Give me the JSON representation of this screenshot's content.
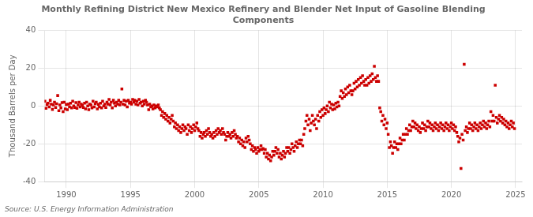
{
  "chart_data": {
    "type": "scatter",
    "title": "Monthly Refining District New Mexico Refinery and Blender Net Input of Gasoline Blending\nComponents",
    "ylabel": "Thousand Barrels per Day",
    "annotation": "Source: U.S. Energy Information Administration",
    "color": "#cc0000",
    "marker": "square",
    "grid": true,
    "legend": false,
    "xlim": [
      1988.3,
      2025.5
    ],
    "xticks": [
      1990,
      1995,
      2000,
      2005,
      2010,
      2015,
      2020,
      2025
    ],
    "ylim": [
      -40,
      40
    ],
    "yticks": [
      -40,
      -20,
      0,
      20,
      40
    ],
    "x": [
      1988.33,
      1988.42,
      1988.5,
      1988.58,
      1988.67,
      1988.75,
      1988.83,
      1988.92,
      1989.0,
      1989.08,
      1989.17,
      1989.25,
      1989.33,
      1989.42,
      1989.5,
      1989.58,
      1989.67,
      1989.75,
      1989.83,
      1989.92,
      1990.0,
      1990.08,
      1990.17,
      1990.25,
      1990.33,
      1990.42,
      1990.5,
      1990.58,
      1990.67,
      1990.75,
      1990.83,
      1990.92,
      1991.0,
      1991.08,
      1991.17,
      1991.25,
      1991.33,
      1991.42,
      1991.5,
      1991.58,
      1991.67,
      1991.75,
      1991.83,
      1991.92,
      1992.0,
      1992.08,
      1992.17,
      1992.25,
      1992.33,
      1992.42,
      1992.5,
      1992.58,
      1992.67,
      1992.75,
      1992.83,
      1992.92,
      1993.0,
      1993.08,
      1993.17,
      1993.25,
      1993.33,
      1993.42,
      1993.5,
      1993.58,
      1993.67,
      1993.75,
      1993.83,
      1993.92,
      1994.0,
      1994.08,
      1994.17,
      1994.25,
      1994.33,
      1994.42,
      1994.5,
      1994.58,
      1994.67,
      1994.75,
      1994.83,
      1994.92,
      1995.0,
      1995.08,
      1995.17,
      1995.25,
      1995.33,
      1995.42,
      1995.5,
      1995.58,
      1995.67,
      1995.75,
      1995.83,
      1995.92,
      1996.0,
      1996.08,
      1996.17,
      1996.25,
      1996.33,
      1996.42,
      1996.5,
      1996.58,
      1996.67,
      1996.75,
      1996.83,
      1996.92,
      1997.0,
      1997.08,
      1997.17,
      1997.25,
      1997.33,
      1997.42,
      1997.5,
      1997.58,
      1997.67,
      1997.75,
      1997.83,
      1997.92,
      1998.0,
      1998.08,
      1998.17,
      1998.25,
      1998.33,
      1998.42,
      1998.5,
      1998.58,
      1998.67,
      1998.75,
      1998.83,
      1998.92,
      1999.0,
      1999.08,
      1999.17,
      1999.25,
      1999.33,
      1999.42,
      1999.5,
      1999.58,
      1999.67,
      1999.75,
      1999.83,
      1999.92,
      2000.0,
      2000.08,
      2000.17,
      2000.25,
      2000.33,
      2000.42,
      2000.5,
      2000.58,
      2000.67,
      2000.75,
      2000.83,
      2000.92,
      2001.0,
      2001.08,
      2001.17,
      2001.25,
      2001.33,
      2001.42,
      2001.5,
      2001.58,
      2001.67,
      2001.75,
      2001.83,
      2001.92,
      2002.0,
      2002.08,
      2002.17,
      2002.25,
      2002.33,
      2002.42,
      2002.5,
      2002.58,
      2002.67,
      2002.75,
      2002.83,
      2002.92,
      2003.0,
      2003.08,
      2003.17,
      2003.25,
      2003.33,
      2003.42,
      2003.5,
      2003.58,
      2003.67,
      2003.75,
      2003.83,
      2003.92,
      2004.0,
      2004.08,
      2004.17,
      2004.25,
      2004.33,
      2004.42,
      2004.5,
      2004.58,
      2004.67,
      2004.75,
      2004.83,
      2004.92,
      2005.0,
      2005.08,
      2005.17,
      2005.25,
      2005.33,
      2005.42,
      2005.5,
      2005.58,
      2005.67,
      2005.75,
      2005.83,
      2005.92,
      2006.0,
      2006.08,
      2006.17,
      2006.25,
      2006.33,
      2006.42,
      2006.5,
      2006.58,
      2006.67,
      2006.75,
      2006.83,
      2006.92,
      2007.0,
      2007.08,
      2007.17,
      2007.25,
      2007.33,
      2007.42,
      2007.5,
      2007.58,
      2007.67,
      2007.75,
      2007.83,
      2007.92,
      2008.0,
      2008.08,
      2008.17,
      2008.25,
      2008.33,
      2008.42,
      2008.5,
      2008.58,
      2008.67,
      2008.75,
      2008.83,
      2008.92,
      2009.0,
      2009.08,
      2009.17,
      2009.25,
      2009.33,
      2009.42,
      2009.5,
      2009.58,
      2009.67,
      2009.75,
      2009.83,
      2009.92,
      2010.0,
      2010.08,
      2010.17,
      2010.25,
      2010.33,
      2010.42,
      2010.5,
      2010.58,
      2010.67,
      2010.75,
      2010.83,
      2010.92,
      2011.0,
      2011.08,
      2011.17,
      2011.25,
      2011.33,
      2011.42,
      2011.5,
      2011.58,
      2011.67,
      2011.75,
      2011.83,
      2011.92,
      2012.0,
      2012.08,
      2012.17,
      2012.25,
      2012.33,
      2012.42,
      2012.5,
      2012.58,
      2012.67,
      2012.75,
      2012.83,
      2012.92,
      2013.0,
      2013.08,
      2013.17,
      2013.25,
      2013.33,
      2013.42,
      2013.5,
      2013.58,
      2013.67,
      2013.75,
      2013.83,
      2013.92,
      2014.0,
      2014.08,
      2014.17,
      2014.25,
      2014.33,
      2014.42,
      2014.5,
      2014.58,
      2014.67,
      2014.75,
      2014.83,
      2014.92,
      2015.0,
      2015.08,
      2015.17,
      2015.25,
      2015.33,
      2015.42,
      2015.5,
      2015.58,
      2015.67,
      2015.75,
      2015.83,
      2015.92,
      2016.0,
      2016.08,
      2016.17,
      2016.25,
      2016.33,
      2016.42,
      2016.5,
      2016.58,
      2016.67,
      2016.75,
      2016.83,
      2016.92,
      2017.0,
      2017.08,
      2017.17,
      2017.25,
      2017.33,
      2017.42,
      2017.5,
      2017.58,
      2017.67,
      2017.75,
      2017.83,
      2017.92,
      2018.0,
      2018.08,
      2018.17,
      2018.25,
      2018.33,
      2018.42,
      2018.5,
      2018.58,
      2018.67,
      2018.75,
      2018.83,
      2018.92,
      2019.0,
      2019.08,
      2019.17,
      2019.25,
      2019.33,
      2019.42,
      2019.5,
      2019.58,
      2019.67,
      2019.75,
      2019.83,
      2019.92,
      2020.0,
      2020.08,
      2020.17,
      2020.25,
      2020.33,
      2020.42,
      2020.5,
      2020.58,
      2020.67,
      2020.75,
      2020.83,
      2020.92,
      2021.0,
      2021.08,
      2021.17,
      2021.25,
      2021.33,
      2021.42,
      2021.5,
      2021.58,
      2021.67,
      2021.75,
      2021.83,
      2021.92,
      2022.0,
      2022.08,
      2022.17,
      2022.25,
      2022.33,
      2022.42,
      2022.5,
      2022.58,
      2022.67,
      2022.75,
      2022.83,
      2022.92,
      2023.0,
      2023.08,
      2023.17,
      2023.25,
      2023.33,
      2023.42,
      2023.5,
      2023.58,
      2023.67,
      2023.75,
      2023.83,
      2023.92,
      2024.0,
      2024.08,
      2024.17,
      2024.25,
      2024.33,
      2024.42,
      2024.5,
      2024.58,
      2024.67,
      2024.75,
      2024.83,
      2024.92
    ],
    "values": [
      2.5,
      -1.2,
      0.8,
      1.5,
      -0.5,
      3.0,
      1.0,
      -1.8,
      0.5,
      2.0,
      -0.8,
      1.2,
      5.5,
      -2.5,
      0.5,
      -1.0,
      1.8,
      -3.0,
      2.0,
      -1.5,
      0.8,
      -2.0,
      1.0,
      -0.5,
      1.5,
      -1.0,
      2.5,
      0.0,
      -0.8,
      1.8,
      -1.2,
      0.5,
      2.0,
      -0.5,
      1.0,
      0.2,
      -0.8,
      1.5,
      -1.5,
      2.0,
      0.0,
      -2.0,
      1.0,
      0.5,
      -1.0,
      2.5,
      -0.5,
      1.2,
      2.0,
      -1.5,
      0.8,
      -0.5,
      1.5,
      -1.0,
      2.5,
      0.0,
      1.0,
      -0.8,
      2.0,
      1.0,
      3.5,
      0.5,
      2.0,
      -1.0,
      3.0,
      1.5,
      0.0,
      2.0,
      1.0,
      3.0,
      0.5,
      2.0,
      9.0,
      1.0,
      3.0,
      0.5,
      2.5,
      -0.5,
      3.0,
      1.5,
      2.0,
      1.0,
      3.5,
      2.0,
      3.0,
      1.0,
      2.5,
      0.5,
      3.5,
      1.5,
      2.0,
      0.0,
      2.5,
      1.0,
      3.0,
      2.0,
      0.5,
      -2.0,
      1.0,
      -0.5,
      0.0,
      -1.5,
      0.5,
      -1.0,
      0.0,
      -0.5,
      0.5,
      -1.0,
      -2.0,
      -5.0,
      -3.0,
      -6.0,
      -4.0,
      -7.0,
      -5.0,
      -8.0,
      -6.0,
      -9.0,
      -7.0,
      -5.0,
      -8.0,
      -11.0,
      -9.0,
      -12.0,
      -10.0,
      -13.0,
      -11.0,
      -14.0,
      -12.0,
      -10.0,
      -13.0,
      -11.0,
      -12.0,
      -15.0,
      -10.0,
      -13.0,
      -11.0,
      -14.0,
      -12.0,
      -10.0,
      -13.0,
      -11.0,
      -9.0,
      -12.0,
      -13.0,
      -16.0,
      -14.0,
      -17.0,
      -15.0,
      -14.0,
      -16.0,
      -13.0,
      -15.0,
      -12.0,
      -14.0,
      -16.0,
      -15.0,
      -17.0,
      -14.0,
      -16.0,
      -13.0,
      -15.0,
      -12.0,
      -14.0,
      -13.0,
      -15.0,
      -12.0,
      -14.0,
      -15.0,
      -18.0,
      -16.0,
      -14.0,
      -16.0,
      -15.0,
      -17.0,
      -14.0,
      -16.0,
      -13.0,
      -15.0,
      -17.0,
      -16.0,
      -19.0,
      -17.0,
      -20.0,
      -18.0,
      -21.0,
      -19.0,
      -22.0,
      -17.0,
      -19.0,
      -16.0,
      -18.0,
      -20.0,
      -23.0,
      -21.0,
      -24.0,
      -22.0,
      -23.0,
      -25.0,
      -22.0,
      -24.0,
      -23.0,
      -21.0,
      -23.0,
      -22.5,
      -25.0,
      -23.0,
      -27.0,
      -25.0,
      -28.0,
      -26.0,
      -29.0,
      -27.0,
      -24.0,
      -26.0,
      -24.0,
      -22.0,
      -25.0,
      -23.0,
      -27.0,
      -25.0,
      -28.0,
      -26.0,
      -24.0,
      -27.0,
      -25.0,
      -22.0,
      -24.0,
      -22.0,
      -25.0,
      -23.0,
      -20.0,
      -22.0,
      -24.0,
      -21.0,
      -19.0,
      -22.0,
      -20.0,
      -18.0,
      -20.0,
      -18.0,
      -21.0,
      -15.0,
      -12.0,
      -8.0,
      -5.0,
      -10.0,
      -7.0,
      -13.0,
      -9.0,
      -5.0,
      -8.0,
      -10.0,
      -7.0,
      -12.0,
      -5.0,
      -8.0,
      -3.0,
      -6.0,
      -2.0,
      -5.0,
      -1.0,
      -4.0,
      -2.0,
      0.0,
      -3.0,
      2.0,
      -1.0,
      1.0,
      -2.0,
      0.5,
      -1.5,
      1.5,
      -0.5,
      2.0,
      0.0,
      5.0,
      8.0,
      4.0,
      7.0,
      5.0,
      9.0,
      6.0,
      10.0,
      7.0,
      11.0,
      8.0,
      6.0,
      8.0,
      12.0,
      9.0,
      13.0,
      10.0,
      14.0,
      11.0,
      15.0,
      12.0,
      16.0,
      13.0,
      11.0,
      14.0,
      11.0,
      15.0,
      12.0,
      16.0,
      13.0,
      17.0,
      14.0,
      21.0,
      15.0,
      13.0,
      16.0,
      13.0,
      -1.0,
      -3.0,
      -8.0,
      -5.0,
      -10.0,
      -7.0,
      -12.0,
      -9.0,
      -15.0,
      -22.0,
      -19.0,
      -21.0,
      -25.0,
      -22.0,
      -19.0,
      -22.0,
      -20.0,
      -23.0,
      -20.0,
      -17.0,
      -20.0,
      -18.0,
      -15.0,
      -18.0,
      -15.0,
      -12.0,
      -15.0,
      -13.0,
      -10.0,
      -13.0,
      -11.0,
      -8.0,
      -11.0,
      -9.0,
      -12.0,
      -10.0,
      -13.0,
      -11.0,
      -14.0,
      -12.0,
      -9.0,
      -12.0,
      -10.0,
      -13.0,
      -11.0,
      -8.0,
      -11.0,
      -9.0,
      -12.0,
      -10.0,
      -13.0,
      -11.0,
      -9.0,
      -12.0,
      -10.0,
      -13.0,
      -11.0,
      -9.0,
      -12.0,
      -10.0,
      -13.0,
      -11.0,
      -9.0,
      -12.0,
      -10.0,
      -13.0,
      -11.0,
      -9.0,
      -12.0,
      -10.0,
      -13.0,
      -11.0,
      -14.0,
      -16.0,
      -19.0,
      -17.0,
      -33.0,
      -15.0,
      -18.0,
      22.0,
      -13.0,
      -11.0,
      -14.0,
      -12.0,
      -9.0,
      -12.0,
      -10.0,
      -13.0,
      -11.0,
      -9.0,
      -12.0,
      -10.0,
      -13.0,
      -11.0,
      -9.0,
      -12.0,
      -10.0,
      -8.0,
      -11.0,
      -9.0,
      -12.0,
      -10.0,
      -8.0,
      -11.0,
      -3.0,
      -8.0,
      -5.0,
      -8.0,
      11.0,
      -6.0,
      -9.0,
      -7.0,
      -5.0,
      -8.0,
      -6.0,
      -9.0,
      -7.0,
      -10.0,
      -8.0,
      -11.0,
      -9.0,
      -12.0,
      -10.0,
      -8.0,
      -11.0,
      -9.0,
      -12.0
    ]
  }
}
